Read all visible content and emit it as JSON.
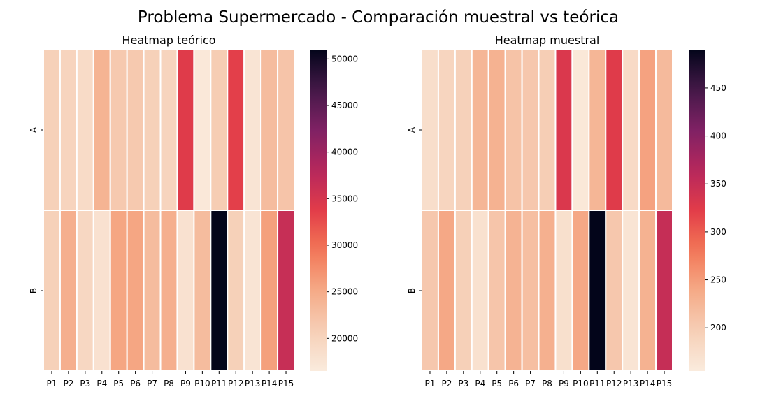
{
  "figure": {
    "suptitle": "Problema Supermercado - Comparación muestral vs teórica"
  },
  "chart_data": [
    {
      "type": "heatmap",
      "title": "Heatmap teórico",
      "x_categories": [
        "P1",
        "P2",
        "P3",
        "P4",
        "P5",
        "P6",
        "P7",
        "P8",
        "P9",
        "P10",
        "P11",
        "P12",
        "P13",
        "P14",
        "P15"
      ],
      "y_categories": [
        "A",
        "B"
      ],
      "values": [
        [
          20500,
          20000,
          19000,
          24000,
          21500,
          21500,
          20500,
          20000,
          34000,
          17000,
          21000,
          33500,
          17500,
          23000,
          22000
        ],
        [
          20500,
          24500,
          19500,
          18000,
          25500,
          25500,
          23000,
          24500,
          18000,
          23000,
          51000,
          20500,
          17500,
          26000,
          36500
        ]
      ],
      "colorbar": {
        "ticks": [
          20000,
          25000,
          30000,
          35000,
          40000,
          45000,
          50000
        ],
        "vmin": 16500,
        "vmax": 51000
      },
      "colormap": "rocket_r"
    },
    {
      "type": "heatmap",
      "title": "Heatmap muestral",
      "x_categories": [
        "P1",
        "P2",
        "P3",
        "P4",
        "P5",
        "P6",
        "P7",
        "P8",
        "P9",
        "P10",
        "P11",
        "P12",
        "P13",
        "P14",
        "P15"
      ],
      "y_categories": [
        "A",
        "B"
      ],
      "values": [
        [
          175,
          188,
          193,
          225,
          230,
          210,
          205,
          198,
          330,
          160,
          225,
          325,
          180,
          245,
          220
        ],
        [
          205,
          240,
          195,
          170,
          208,
          228,
          215,
          232,
          172,
          240,
          490,
          205,
          165,
          230,
          350
        ]
      ],
      "colorbar": {
        "ticks": [
          200,
          250,
          300,
          350,
          400,
          450
        ],
        "vmin": 155,
        "vmax": 490
      },
      "colormap": "rocket_r"
    }
  ]
}
